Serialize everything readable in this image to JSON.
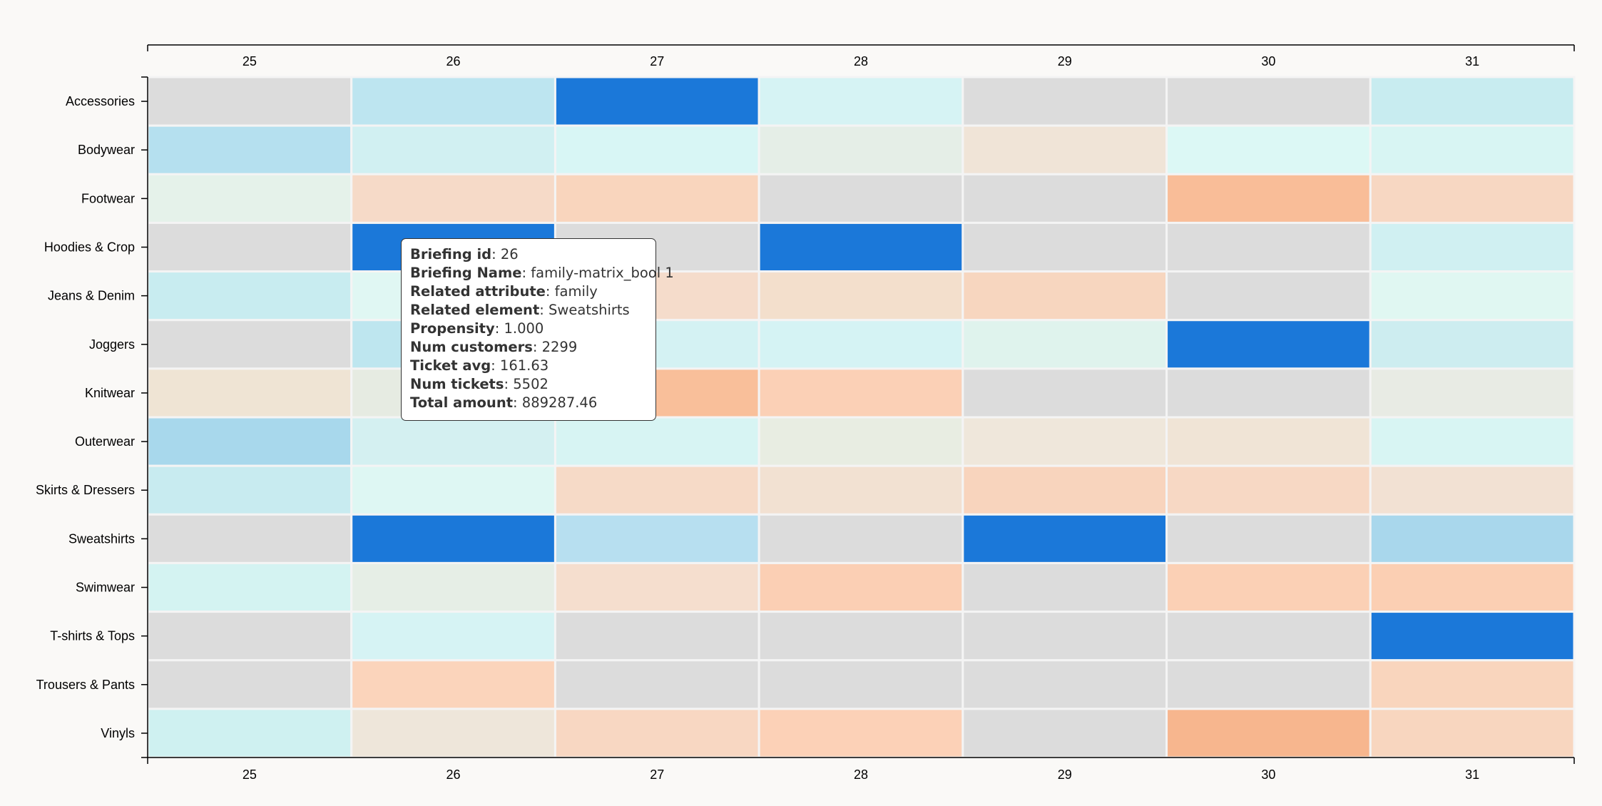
{
  "chart_data": {
    "type": "heatmap",
    "columns": [
      "25",
      "26",
      "27",
      "28",
      "29",
      "30",
      "31"
    ],
    "rows": [
      "Accessories",
      "Bodywear",
      "Footwear",
      "Hoodies & Crop",
      "Jeans & Denim",
      "Joggers",
      "Knitwear",
      "Outerwear",
      "Skirts & Dressers",
      "Sweatshirts",
      "Swimwear",
      "T-shirts & Tops",
      "Trousers & Pants",
      "Vinyls"
    ],
    "cells": [
      [
        "#dcdcdc",
        "#bde5f0",
        "#1b78d9",
        "#d6f3f4",
        "#dcdcdc",
        "#dcdcdc",
        "#c8ecf0"
      ],
      [
        "#b5e0ef",
        "#d1f0f2",
        "#d8f6f5",
        "#e5eee7",
        "#f0e4d7",
        "#dcf8f5",
        "#d8f5f3"
      ],
      [
        "#e5f2ea",
        "#f6dac8",
        "#f9d5bd",
        "#dcdcdc",
        "#dcdcdc",
        "#f9bd98",
        "#f7d7c2"
      ],
      [
        "#dcdcdc",
        "#1b78d9",
        "#dcdcdc",
        "#1b78d9",
        "#dcdcdc",
        "#dcdcdc",
        "#d0f0f2"
      ],
      [
        "#c8ecf0",
        "#e0f7f3",
        "#f5dccb",
        "#f3dfcc",
        "#f7d6bf",
        "#dcdcdc",
        "#e0f7f2"
      ],
      [
        "#dcdcdc",
        "#bee6ef",
        "#d4f2f3",
        "#d5f3f4",
        "#dff3ed",
        "#1b78d9",
        "#cdedf0"
      ],
      [
        "#efe4d4",
        "#e6ebe2",
        "#f9bf9a",
        "#fbd0b6",
        "#dcdcdc",
        "#dcdcdc",
        "#e8ebe4"
      ],
      [
        "#a8d8ec",
        "#d4f0f1",
        "#d7f4f3",
        "#e8ede2",
        "#efe7db",
        "#f0e4d6",
        "#d8f5f3"
      ],
      [
        "#c8ebf0",
        "#def7f3",
        "#f6dac7",
        "#f2e1d2",
        "#f8d4bd",
        "#f7d8c4",
        "#f2e1d3"
      ],
      [
        "#dcdcdc",
        "#1b78d9",
        "#b7dff0",
        "#dcdcdc",
        "#1b78d9",
        "#dcdcdc",
        "#a9d7ec"
      ],
      [
        "#d4f3f2",
        "#e6eee6",
        "#f5dece",
        "#fbcfb4",
        "#dcdcdc",
        "#fbd0b5",
        "#fbcfb3"
      ],
      [
        "#dcdcdc",
        "#d6f3f4",
        "#dcdcdc",
        "#dcdcdc",
        "#dcdcdc",
        "#dcdcdc",
        "#1b78d9"
      ],
      [
        "#dcdcdc",
        "#fbd4bb",
        "#dcdcdc",
        "#dcdcdc",
        "#dcdcdc",
        "#dcdcdc",
        "#f9d5bd"
      ],
      [
        "#cff1f1",
        "#eee6da",
        "#f8d7c2",
        "#fcd1b7",
        "#dcdcdc",
        "#f7b68e",
        "#f8d6bf"
      ]
    ],
    "grid": true
  },
  "tooltip": {
    "lines": [
      {
        "label": "Briefing id",
        "value": ": 26"
      },
      {
        "label": "Briefing Name",
        "value": ": family-matrix_bool 1"
      },
      {
        "label": "Related attribute",
        "value": ": family"
      },
      {
        "label": "Related element",
        "value": ": Sweatshirts"
      },
      {
        "label": "Propensity",
        "value": ": 1.000"
      },
      {
        "label": "Num customers",
        "value": ": 2299"
      },
      {
        "label": "Ticket avg",
        "value": ": 161.63"
      },
      {
        "label": "Num tickets",
        "value": ": 5502"
      },
      {
        "label": "Total amount",
        "value": ": 889287.46"
      }
    ]
  }
}
